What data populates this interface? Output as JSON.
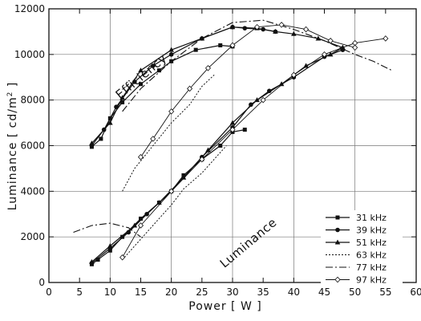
{
  "chart_data": {
    "type": "line",
    "xlabel": "Power [ W ]",
    "ylabel_main": "Luminance [ cd/m",
    "ylabel_sup": "2",
    "ylabel_end": " ]",
    "xlim": [
      0,
      60
    ],
    "ylim": [
      0,
      12000
    ],
    "xticks": [
      0,
      5,
      10,
      15,
      20,
      25,
      30,
      35,
      40,
      45,
      50,
      55,
      60
    ],
    "yticks": [
      0,
      2000,
      4000,
      6000,
      8000,
      10000,
      12000
    ],
    "grid": true,
    "legend_position": "lower-right",
    "annotations": [
      {
        "text": "Efficiency",
        "x": 15.5,
        "y": 8900,
        "angle": -40
      },
      {
        "text": "Luminance",
        "x": 33,
        "y": 1600,
        "angle": -40
      }
    ],
    "series": [
      {
        "name": "31 kHz",
        "marker": "square",
        "luminance": [
          [
            7,
            800
          ],
          [
            8,
            1000
          ],
          [
            10,
            1400
          ],
          [
            12,
            2000
          ],
          [
            15,
            2800
          ],
          [
            18,
            3500
          ],
          [
            20,
            4000
          ],
          [
            22,
            4700
          ],
          [
            25,
            5400
          ],
          [
            28,
            6000
          ],
          [
            30,
            6600
          ],
          [
            32,
            6700
          ]
        ],
        "efficiency": [
          [
            7,
            5950
          ],
          [
            8.5,
            6300
          ],
          [
            10,
            7200
          ],
          [
            12,
            7900
          ],
          [
            15,
            8700
          ],
          [
            18,
            9300
          ],
          [
            20,
            9700
          ],
          [
            24,
            10200
          ],
          [
            28,
            10400
          ],
          [
            30,
            10350
          ]
        ]
      },
      {
        "name": "39 kHz",
        "marker": "circle",
        "luminance": [
          [
            7,
            850
          ],
          [
            10,
            1500
          ],
          [
            13,
            2200
          ],
          [
            16,
            3000
          ],
          [
            20,
            4000
          ],
          [
            25,
            5500
          ],
          [
            30,
            6800
          ],
          [
            33,
            7800
          ],
          [
            36,
            8400
          ],
          [
            40,
            9000
          ],
          [
            45,
            9900
          ],
          [
            48,
            10200
          ]
        ],
        "efficiency": [
          [
            7,
            6000
          ],
          [
            9,
            6700
          ],
          [
            11,
            7700
          ],
          [
            14,
            8800
          ],
          [
            17,
            9500
          ],
          [
            20,
            10000
          ],
          [
            25,
            10700
          ],
          [
            30,
            11200
          ],
          [
            32,
            11150
          ],
          [
            35,
            11100
          ],
          [
            37,
            11000
          ]
        ]
      },
      {
        "name": "51 kHz",
        "marker": "triangle",
        "luminance": [
          [
            7,
            900
          ],
          [
            10,
            1600
          ],
          [
            14,
            2500
          ],
          [
            18,
            3500
          ],
          [
            22,
            4600
          ],
          [
            26,
            5800
          ],
          [
            30,
            7000
          ],
          [
            34,
            8000
          ],
          [
            38,
            8700
          ],
          [
            42,
            9500
          ],
          [
            46,
            10000
          ],
          [
            48,
            10300
          ]
        ],
        "efficiency": [
          [
            7,
            6100
          ],
          [
            10,
            7000
          ],
          [
            12,
            8100
          ],
          [
            15,
            9300
          ],
          [
            20,
            10200
          ],
          [
            25,
            10700
          ],
          [
            30,
            11200
          ],
          [
            34,
            11150
          ],
          [
            37,
            11000
          ],
          [
            40,
            10900
          ],
          [
            44,
            10700
          ],
          [
            48,
            10300
          ]
        ]
      },
      {
        "name": "63 kHz",
        "marker": "none",
        "luminance": [
          [
            12,
            1000
          ],
          [
            14,
            1600
          ],
          [
            16,
            2200
          ],
          [
            18,
            2800
          ],
          [
            20,
            3400
          ],
          [
            22,
            4100
          ],
          [
            25,
            4800
          ],
          [
            27,
            5400
          ],
          [
            29,
            6000
          ]
        ],
        "efficiency": [
          [
            12,
            4000
          ],
          [
            14,
            5000
          ],
          [
            17,
            6000
          ],
          [
            20,
            7000
          ],
          [
            23,
            7800
          ],
          [
            25,
            8600
          ],
          [
            27,
            9100
          ]
        ]
      },
      {
        "name": "77 kHz",
        "marker": "none",
        "luminance": [
          [
            4,
            2200
          ],
          [
            7,
            2500
          ],
          [
            10,
            2600
          ],
          [
            13,
            2400
          ],
          [
            15,
            2000
          ]
        ],
        "efficiency": [
          [
            12,
            7500
          ],
          [
            15,
            8500
          ],
          [
            20,
            9700
          ],
          [
            25,
            10700
          ],
          [
            30,
            11400
          ],
          [
            35,
            11500
          ],
          [
            40,
            11100
          ],
          [
            45,
            10600
          ],
          [
            50,
            10000
          ],
          [
            53,
            9700
          ],
          [
            56,
            9300
          ]
        ]
      },
      {
        "name": "97 kHz",
        "marker": "diamond",
        "luminance": [
          [
            12,
            1100
          ],
          [
            15,
            2500
          ],
          [
            20,
            4000
          ],
          [
            25,
            5400
          ],
          [
            30,
            6700
          ],
          [
            35,
            8000
          ],
          [
            40,
            9100
          ],
          [
            45,
            10000
          ],
          [
            50,
            10500
          ],
          [
            55,
            10700
          ]
        ],
        "efficiency": [
          [
            15,
            5500
          ],
          [
            17,
            6300
          ],
          [
            20,
            7500
          ],
          [
            23,
            8500
          ],
          [
            26,
            9400
          ],
          [
            30,
            10400
          ],
          [
            34,
            11200
          ],
          [
            38,
            11300
          ],
          [
            42,
            11100
          ],
          [
            46,
            10600
          ],
          [
            50,
            10300
          ]
        ]
      }
    ]
  }
}
